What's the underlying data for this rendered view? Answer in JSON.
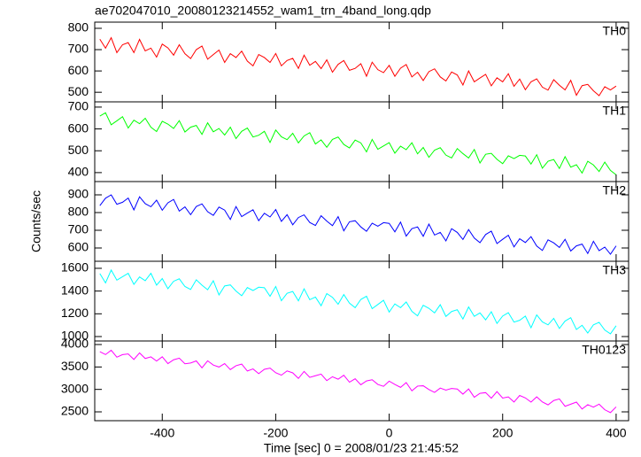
{
  "chart_data": {
    "type": "line",
    "title": "ae702047010_20080123214552_wam1_trn_4band_long.qdp",
    "x_label": "Time [sec] 0 = 2008/01/23 21:45:52",
    "y_label": "Counts/sec",
    "xlim": [
      -519,
      422
    ],
    "xticks": [
      -400,
      -200,
      0,
      200,
      400
    ],
    "x": [
      -510,
      -500,
      -490,
      -480,
      -470,
      -460,
      -450,
      -440,
      -430,
      -420,
      -410,
      -400,
      -390,
      -380,
      -370,
      -360,
      -350,
      -340,
      -330,
      -320,
      -310,
      -300,
      -290,
      -280,
      -270,
      -260,
      -250,
      -240,
      -230,
      -220,
      -210,
      -200,
      -190,
      -180,
      -170,
      -160,
      -150,
      -140,
      -130,
      -120,
      -110,
      -100,
      -90,
      -80,
      -70,
      -60,
      -50,
      -40,
      -30,
      -20,
      -10,
      0,
      10,
      20,
      30,
      40,
      50,
      60,
      70,
      80,
      90,
      100,
      110,
      120,
      130,
      140,
      150,
      160,
      170,
      180,
      190,
      200,
      210,
      220,
      230,
      240,
      250,
      260,
      270,
      280,
      290,
      300,
      310,
      320,
      330,
      340,
      350,
      360,
      370,
      380,
      390,
      400
    ],
    "series": [
      {
        "name": "TH0",
        "color": "#ff0000",
        "ylim": [
          455,
          829
        ],
        "yticks": [
          500,
          600,
          700,
          800
        ],
        "values": [
          749,
          707,
          756,
          686,
          723,
          733,
          686,
          748,
          694,
          707,
          665,
          726,
          708,
          674,
          723,
          681,
          658,
          700,
          717,
          655,
          677,
          698,
          640,
          681,
          663,
          693,
          646,
          624,
          677,
          663,
          640,
          682,
          624,
          649,
          659,
          612,
          674,
          627,
          645,
          611,
          652,
          594,
          631,
          649,
          603,
          612,
          634,
          575,
          641,
          606,
          592,
          626,
          575,
          613,
          630,
          572,
          594,
          555,
          597,
          610,
          572,
          553,
          595,
          581,
          534,
          600,
          549,
          567,
          584,
          530,
          568,
          549,
          587,
          528,
          562,
          512,
          549,
          563,
          524,
          510,
          559,
          533,
          511,
          556,
          486,
          531,
          537,
          507,
          484,
          526,
          511,
          529
        ]
      },
      {
        "name": "TH1",
        "color": "#00ff00",
        "ylim": [
          359,
          724
        ],
        "yticks": [
          400,
          500,
          600,
          700
        ],
        "values": [
          659,
          674,
          619,
          637,
          656,
          604,
          640,
          624,
          649,
          608,
          588,
          635,
          622,
          602,
          638,
          586,
          608,
          616,
          575,
          628,
          587,
          602,
          572,
          608,
          556,
          589,
          604,
          563,
          571,
          589,
          538,
          595,
          564,
          551,
          580,
          536,
          568,
          583,
          531,
          550,
          516,
          552,
          563,
          529,
          513,
          549,
          536,
          495,
          552,
          507,
          522,
          537,
          489,
          521,
          505,
          537,
          486,
          515,
          470,
          503,
          514,
          480,
          467,
          510,
          487,
          467,
          506,
          444,
          484,
          488,
          461,
          441,
          477,
          464,
          479,
          476,
          439,
          482,
          420,
          452,
          460,
          419,
          473,
          425,
          436,
          398,
          452,
          435,
          405,
          448,
          410,
          390
        ]
      },
      {
        "name": "TH2",
        "color": "#0000ff",
        "ylim": [
          525,
          975
        ],
        "yticks": [
          600,
          700,
          800,
          900
        ],
        "values": [
          839,
          881,
          900,
          847,
          858,
          882,
          815,
          889,
          850,
          833,
          870,
          813,
          855,
          874,
          808,
          832,
          788,
          834,
          849,
          805,
          784,
          831,
          814,
          761,
          834,
          777,
          797,
          816,
          754,
          796,
          775,
          817,
          750,
          788,
          731,
          772,
          787,
          744,
          727,
          782,
          752,
          726,
          777,
          697,
          748,
          754,
          719,
          694,
          740,
          723,
          743,
          739,
          691,
          746,
          667,
          709,
          719,
          666,
          735,
          673,
          688,
          640,
          709,
          688,
          648,
          704,
          656,
          630,
          676,
          695,
          625,
          649,
          672,
          606,
          652,
          631,
          664,
          611,
          586,
          646,
          629,
          603,
          649,
          583,
          612,
          622,
          569,
          638,
          585,
          605,
          565,
          612
        ]
      },
      {
        "name": "TH3",
        "color": "#00ffff",
        "ylim": [
          961,
          1662
        ],
        "yticks": [
          1000,
          1200,
          1400,
          1600
        ],
        "values": [
          1554,
          1472,
          1585,
          1496,
          1526,
          1556,
          1459,
          1524,
          1491,
          1556,
          1452,
          1510,
          1421,
          1486,
          1508,
          1440,
          1414,
          1499,
          1452,
          1412,
          1491,
          1366,
          1445,
          1454,
          1400,
          1359,
          1431,
          1405,
          1434,
          1429,
          1354,
          1440,
          1315,
          1380,
          1396,
          1314,
          1420,
          1324,
          1347,
          1271,
          1378,
          1345,
          1284,
          1369,
          1294,
          1254,
          1326,
          1355,
          1245,
          1282,
          1319,
          1215,
          1287,
          1254,
          1304,
          1222,
          1182,
          1275,
          1248,
          1208,
          1280,
          1177,
          1220,
          1236,
          1154,
          1260,
          1178,
          1208,
          1147,
          1218,
          1115,
          1180,
          1210,
          1127,
          1143,
          1180,
          1077,
          1190,
          1129,
          1103,
          1160,
          1071,
          1136,
          1166,
          1062,
          1099,
          1031,
          1103,
          1125,
          1057,
          1024,
          1095
        ]
      },
      {
        "name": "TH0123",
        "color": "#ff00ff",
        "ylim": [
          2303,
          4079
        ],
        "yticks": [
          2500,
          3000,
          3500,
          4000
        ],
        "values": [
          3840,
          3776,
          3872,
          3718,
          3775,
          3791,
          3667,
          3813,
          3689,
          3725,
          3632,
          3728,
          3574,
          3660,
          3696,
          3572,
          3588,
          3635,
          3481,
          3637,
          3543,
          3499,
          3575,
          3441,
          3528,
          3564,
          3410,
          3456,
          3352,
          3448,
          3475,
          3371,
          3317,
          3413,
          3369,
          3245,
          3401,
          3268,
          3304,
          3340,
          3196,
          3282,
          3228,
          3315,
          3161,
          3237,
          3103,
          3189,
          3215,
          3111,
          3068,
          3184,
          3110,
          3046,
          3152,
          2968,
          3074,
          3081,
          2997,
          2933,
          3029,
          2985,
          3021,
          3008,
          2894,
          3010,
          2826,
          2912,
          2928,
          2804,
          2951,
          2807,
          2833,
          2719,
          2865,
          2811,
          2717,
          2834,
          2720,
          2656,
          2752,
          2788,
          2624,
          2671,
          2717,
          2563,
          2659,
          2605,
          2671,
          2547,
          2484,
          2610
        ]
      }
    ]
  }
}
